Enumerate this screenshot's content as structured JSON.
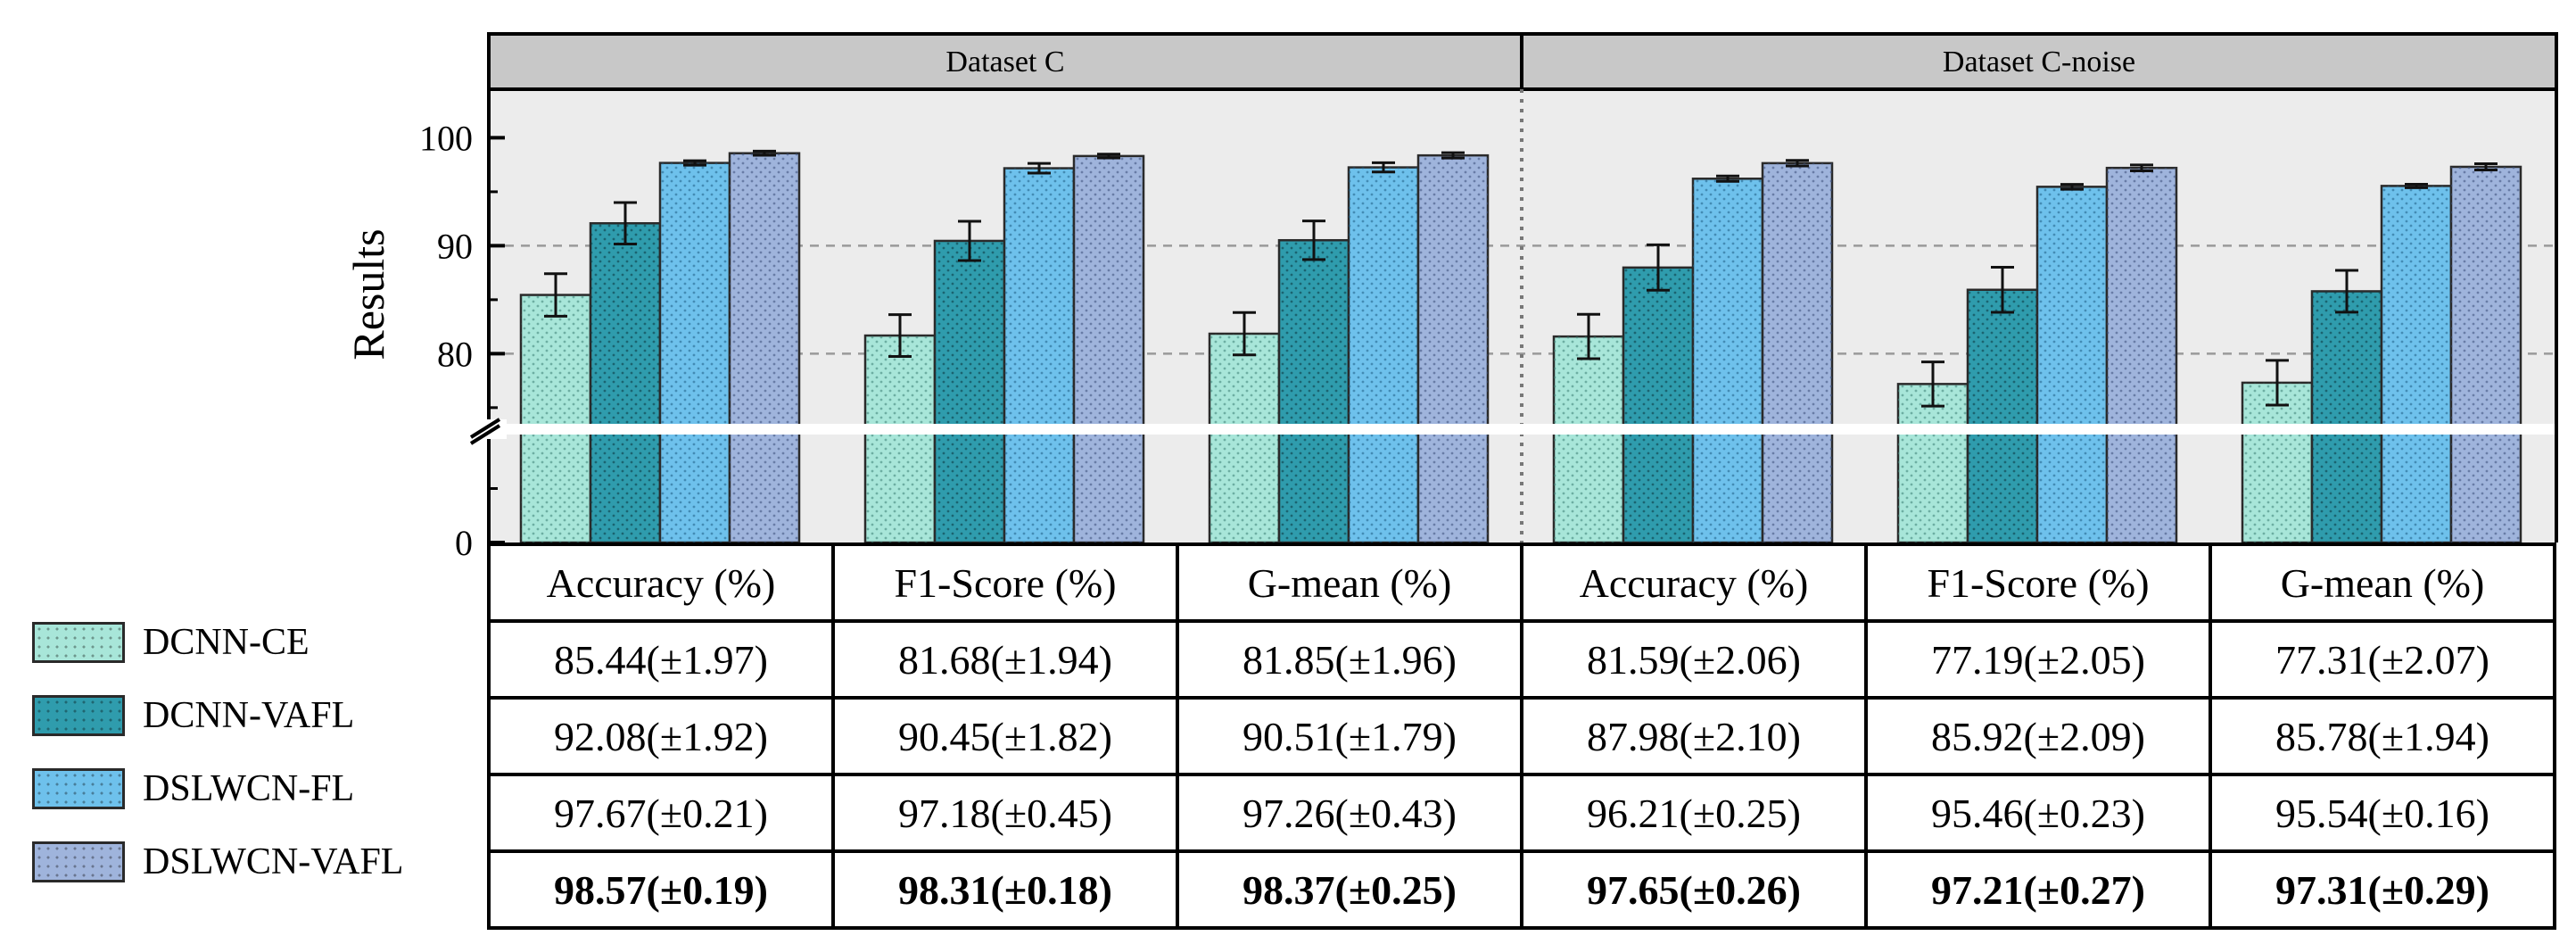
{
  "chart_data": {
    "type": "bar",
    "ylabel": "Results",
    "yticks": [
      0,
      80,
      90,
      100
    ],
    "axis_break": "between 0 and 80",
    "ylim_upper": [
      73.5,
      104.5
    ],
    "ylim_lower": [
      0,
      70
    ],
    "grid": "dashed at 80 and 90",
    "panels": [
      {
        "title": "Dataset C",
        "categories": [
          "Accuracy (%)",
          "F1-Score (%)",
          "G-mean (%)"
        ]
      },
      {
        "title": "Dataset C-noise",
        "categories": [
          "Accuracy (%)",
          "F1-Score (%)",
          "G-mean (%)"
        ]
      }
    ],
    "series": [
      {
        "name": "DCNN-CE",
        "color": "#a8e6d9",
        "values": [
          85.44,
          81.68,
          81.85,
          81.59,
          77.19,
          77.31
        ],
        "errors": [
          1.97,
          1.94,
          1.96,
          2.06,
          2.05,
          2.07
        ],
        "labels": [
          "85.44(±1.97)",
          "81.68(±1.94)",
          "81.85(±1.96)",
          "81.59(±2.06)",
          "77.19(±2.05)",
          "77.31(±2.07)"
        ]
      },
      {
        "name": "DCNN-VAFL",
        "color": "#2f9cad",
        "values": [
          92.08,
          90.45,
          90.51,
          87.98,
          85.92,
          85.78
        ],
        "errors": [
          1.92,
          1.82,
          1.79,
          2.1,
          2.09,
          1.94
        ],
        "labels": [
          "92.08(±1.92)",
          "90.45(±1.82)",
          "90.51(±1.79)",
          "87.98(±2.10)",
          "85.92(±2.09)",
          "85.78(±1.94)"
        ]
      },
      {
        "name": "DSLWCN-FL",
        "color": "#6ec1ec",
        "values": [
          97.67,
          97.18,
          97.26,
          96.21,
          95.46,
          95.54
        ],
        "errors": [
          0.21,
          0.45,
          0.43,
          0.25,
          0.23,
          0.16
        ],
        "labels": [
          "97.67(±0.21)",
          "97.18(±0.45)",
          "97.26(±0.43)",
          "96.21(±0.25)",
          "95.46(±0.23)",
          "95.54(±0.16)"
        ]
      },
      {
        "name": "DSLWCN-VAFL",
        "color": "#9fb4dc",
        "values": [
          98.57,
          98.31,
          98.37,
          97.65,
          97.21,
          97.31
        ],
        "errors": [
          0.19,
          0.18,
          0.25,
          0.26,
          0.27,
          0.29
        ],
        "labels": [
          "98.57(±0.19)",
          "98.31(±0.18)",
          "98.37(±0.25)",
          "97.65(±0.26)",
          "97.21(±0.27)",
          "97.31(±0.29)"
        ]
      }
    ]
  }
}
